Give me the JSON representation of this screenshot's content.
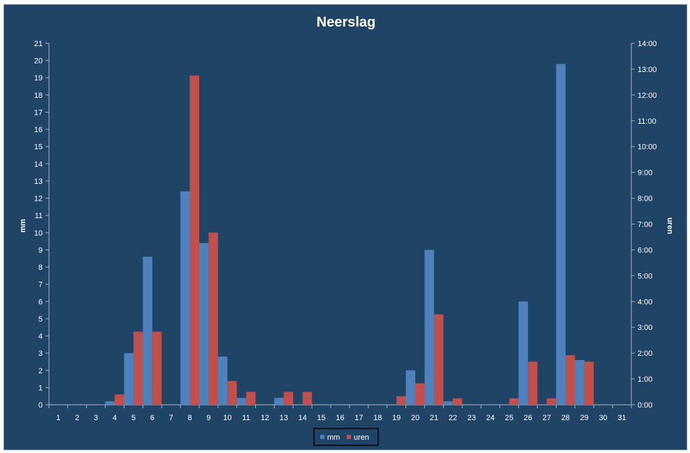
{
  "chart_data": {
    "type": "bar",
    "title": "Neerslag",
    "xlabel": "",
    "ylabel": "mm",
    "y2label": "uren",
    "categories": [
      "1",
      "2",
      "3",
      "4",
      "5",
      "6",
      "7",
      "8",
      "9",
      "10",
      "11",
      "12",
      "13",
      "14",
      "15",
      "16",
      "17",
      "18",
      "19",
      "20",
      "21",
      "22",
      "23",
      "24",
      "25",
      "26",
      "27",
      "28",
      "29",
      "30",
      "31"
    ],
    "ylim": [
      0,
      21
    ],
    "y_ticks": [
      "0",
      "1",
      "2",
      "3",
      "4",
      "5",
      "6",
      "7",
      "8",
      "9",
      "10",
      "11",
      "12",
      "13",
      "14",
      "15",
      "16",
      "17",
      "18",
      "19",
      "20",
      "21"
    ],
    "y2_ticks": [
      "0:00",
      "1:00",
      "2:00",
      "3:00",
      "4:00",
      "5:00",
      "6:00",
      "7:00",
      "8:00",
      "9:00",
      "10:00",
      "11:00",
      "12:00",
      "13:00",
      "14:00"
    ],
    "y2lim_hours": [
      0,
      14
    ],
    "grid": false,
    "legend_position": "bottom",
    "series": [
      {
        "name": "mm",
        "axis": "left",
        "color": "#4f81bd",
        "values": [
          0,
          0,
          0,
          0.2,
          3,
          8.6,
          0,
          12.4,
          9.4,
          2.8,
          0.4,
          0,
          0.4,
          0,
          0,
          0,
          0,
          0,
          0,
          2,
          9,
          0.2,
          0,
          0,
          0,
          6,
          0,
          19.8,
          2.6,
          0,
          0
        ]
      },
      {
        "name": "uren",
        "axis": "right",
        "color": "#c0504d",
        "values_hours": [
          0,
          0,
          0,
          0.4,
          2.83,
          2.83,
          0,
          12.75,
          6.67,
          0.92,
          0.5,
          0,
          0.5,
          0.5,
          0,
          0,
          0,
          0,
          0.33,
          0.83,
          3.5,
          0.25,
          0,
          0,
          0.25,
          1.67,
          0.25,
          1.92,
          1.67,
          0,
          0
        ]
      }
    ]
  },
  "colors": {
    "background": "#1f4466",
    "axis": "#a8b8c8",
    "text": "#ffffff"
  }
}
